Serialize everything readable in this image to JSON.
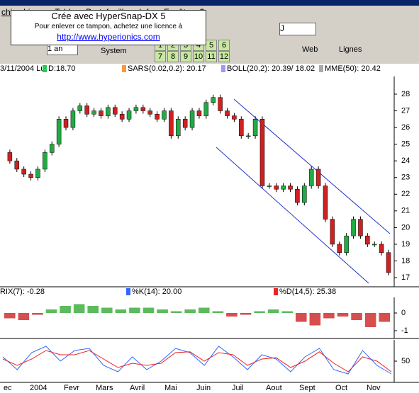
{
  "menu": [
    "chie",
    "Lignes",
    "Tables",
    "Portefeuilles",
    "Infos",
    "Fenêtre",
    "?"
  ],
  "watermark": {
    "line1": "Crée avec HyperSnap-DX 5",
    "line2": "Pour enlever ce tampon, achetez une licence à",
    "url": "http://www.hyperionics.com"
  },
  "toolbar": {
    "symbol": "J",
    "period": "1 an",
    "trading_system": "System",
    "buttons": [
      "1",
      "2",
      "3",
      "4",
      "5",
      "6",
      "7",
      "8",
      "9",
      "10",
      "11",
      "12"
    ],
    "web": "Web",
    "lines": "Lignes"
  },
  "x_axis_labels": [
    "ec",
    "2004",
    "Fevr",
    "Mars",
    "Avril",
    "Mai",
    "Juin",
    "Juil",
    "Aout",
    "Sept",
    "Oct",
    "Nov"
  ],
  "chart_data": [
    {
      "type": "candlestick",
      "legend": [
        {
          "name": "3/11/2004 Lu",
          "color": "#000000"
        },
        {
          "name": "D:18.70",
          "color": "#22cc55"
        },
        {
          "name": "SARS(0.02,0.2): 20.17",
          "color": "#ff9933"
        },
        {
          "name": "BOLL(20,2): 20.39/ 18.02",
          "color": "#9999ff"
        },
        {
          "name": "MME(50): 20.42",
          "color": "#aaaaaa"
        }
      ],
      "values": [
        24.5,
        24,
        23.5,
        23.2,
        23,
        23.5,
        24.5,
        25,
        26.5,
        26,
        27,
        27.3,
        26.8,
        27,
        26.7,
        27.2,
        26.8,
        26.5,
        27,
        27.2,
        27,
        26.8,
        26.5,
        27,
        25.5,
        26.5,
        26,
        27,
        26.7,
        27.5,
        27.8,
        27,
        26.7,
        26.5,
        25.5,
        25.5,
        26.5,
        22.5,
        22.5,
        22.3,
        22.5,
        22.3,
        21.5,
        22.5,
        23.5,
        22.5,
        20.5,
        19,
        18.5,
        19.5,
        20.5,
        19.5,
        19,
        19,
        18.5,
        17.3
      ],
      "up_color": "#22aa44",
      "down_color": "#cc2222",
      "ylim": [
        16.45,
        29.06
      ],
      "yticks": [
        17,
        18,
        19,
        20,
        21,
        22,
        23,
        24,
        25,
        26,
        27,
        28
      ]
    },
    {
      "type": "bar",
      "legend": [
        {
          "name": "RIX(7): -0.28",
          "color": "#000000"
        }
      ],
      "values": [
        -0.3,
        -0.4,
        -0.1,
        0.2,
        0.4,
        0.5,
        0.4,
        0.3,
        0.2,
        0.3,
        0.3,
        0.2,
        0.1,
        0.2,
        0.3,
        0.1,
        -0.2,
        -0.1,
        0.1,
        0.2,
        0.1,
        -0.5,
        -0.7,
        -0.3,
        -0.2,
        -0.4,
        -0.8,
        -0.5
      ],
      "up_color": "#33aa33",
      "down_color": "#cc2222",
      "ylim": [
        -1.44,
        0.88
      ],
      "yticks": [
        0,
        -1
      ]
    },
    {
      "type": "line",
      "series": [
        {
          "name": "%K(14): 20.00",
          "color": "#3366ff",
          "values": [
            60,
            30,
            70,
            85,
            50,
            75,
            80,
            40,
            25,
            60,
            30,
            50,
            80,
            70,
            40,
            85,
            60,
            30,
            65,
            55,
            25,
            60,
            80,
            30,
            20,
            75,
            40,
            20
          ]
        },
        {
          "name": "%D(14,5): 25.38",
          "color": "#ee2222",
          "values": [
            55,
            40,
            55,
            75,
            65,
            65,
            75,
            55,
            35,
            45,
            40,
            45,
            70,
            72,
            50,
            70,
            65,
            40,
            55,
            58,
            35,
            50,
            72,
            45,
            25,
            60,
            50,
            25
          ]
        }
      ],
      "ylim": [
        0,
        100
      ],
      "yticks": [
        50
      ]
    }
  ]
}
